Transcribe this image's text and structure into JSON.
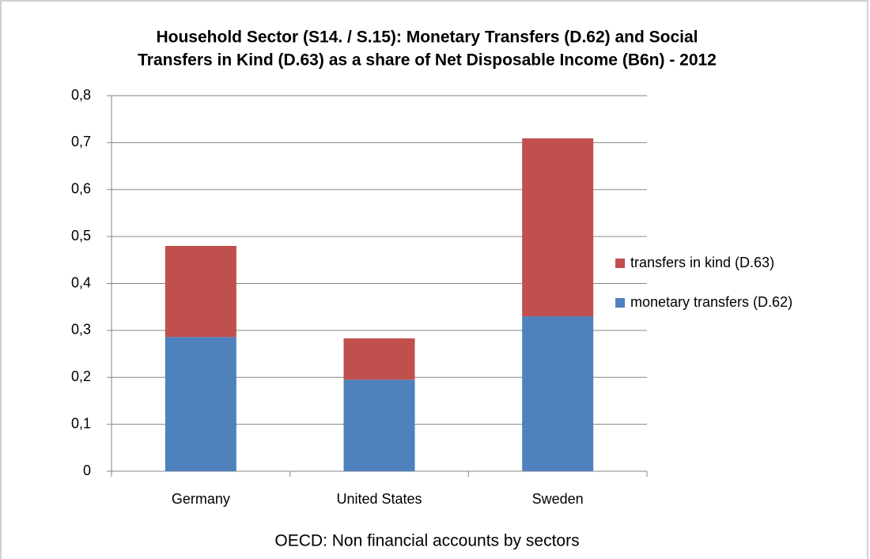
{
  "chart_data": {
    "type": "stacked_bar",
    "title": [
      "Household Sector (S14. / S.15): Monetary Transfers (D.62) and Social",
      "Transfers in Kind (D.63) as a share of Net Disposable Income  (B6n) - 2012"
    ],
    "xlabel": "OECD: Non financial accounts by sectors",
    "categories": [
      "Germany",
      "United States",
      "Sweden"
    ],
    "series": [
      {
        "name": "monetary transfers (D.62)",
        "color": "#4f81bd",
        "values": [
          0.286,
          0.195,
          0.33
        ]
      },
      {
        "name": "transfers in kind (D.63)",
        "color": "#c0504d",
        "values": [
          0.194,
          0.088,
          0.379
        ]
      }
    ],
    "ylim": [
      0,
      0.8
    ],
    "yticks": [
      0,
      {
        "value": 0.1,
        "label": "0,1"
      },
      {
        "value": 0.2,
        "label": "0,2"
      },
      {
        "value": 0.3,
        "label": "0,3"
      },
      {
        "value": 0.4,
        "label": "0,4"
      },
      {
        "value": 0.5,
        "label": "0,5"
      },
      {
        "value": 0.6,
        "label": "0,6"
      },
      {
        "value": 0.7,
        "label": "0,7"
      },
      {
        "value": 0.8,
        "label": "0,8"
      }
    ],
    "grid": true,
    "legend": "right"
  }
}
